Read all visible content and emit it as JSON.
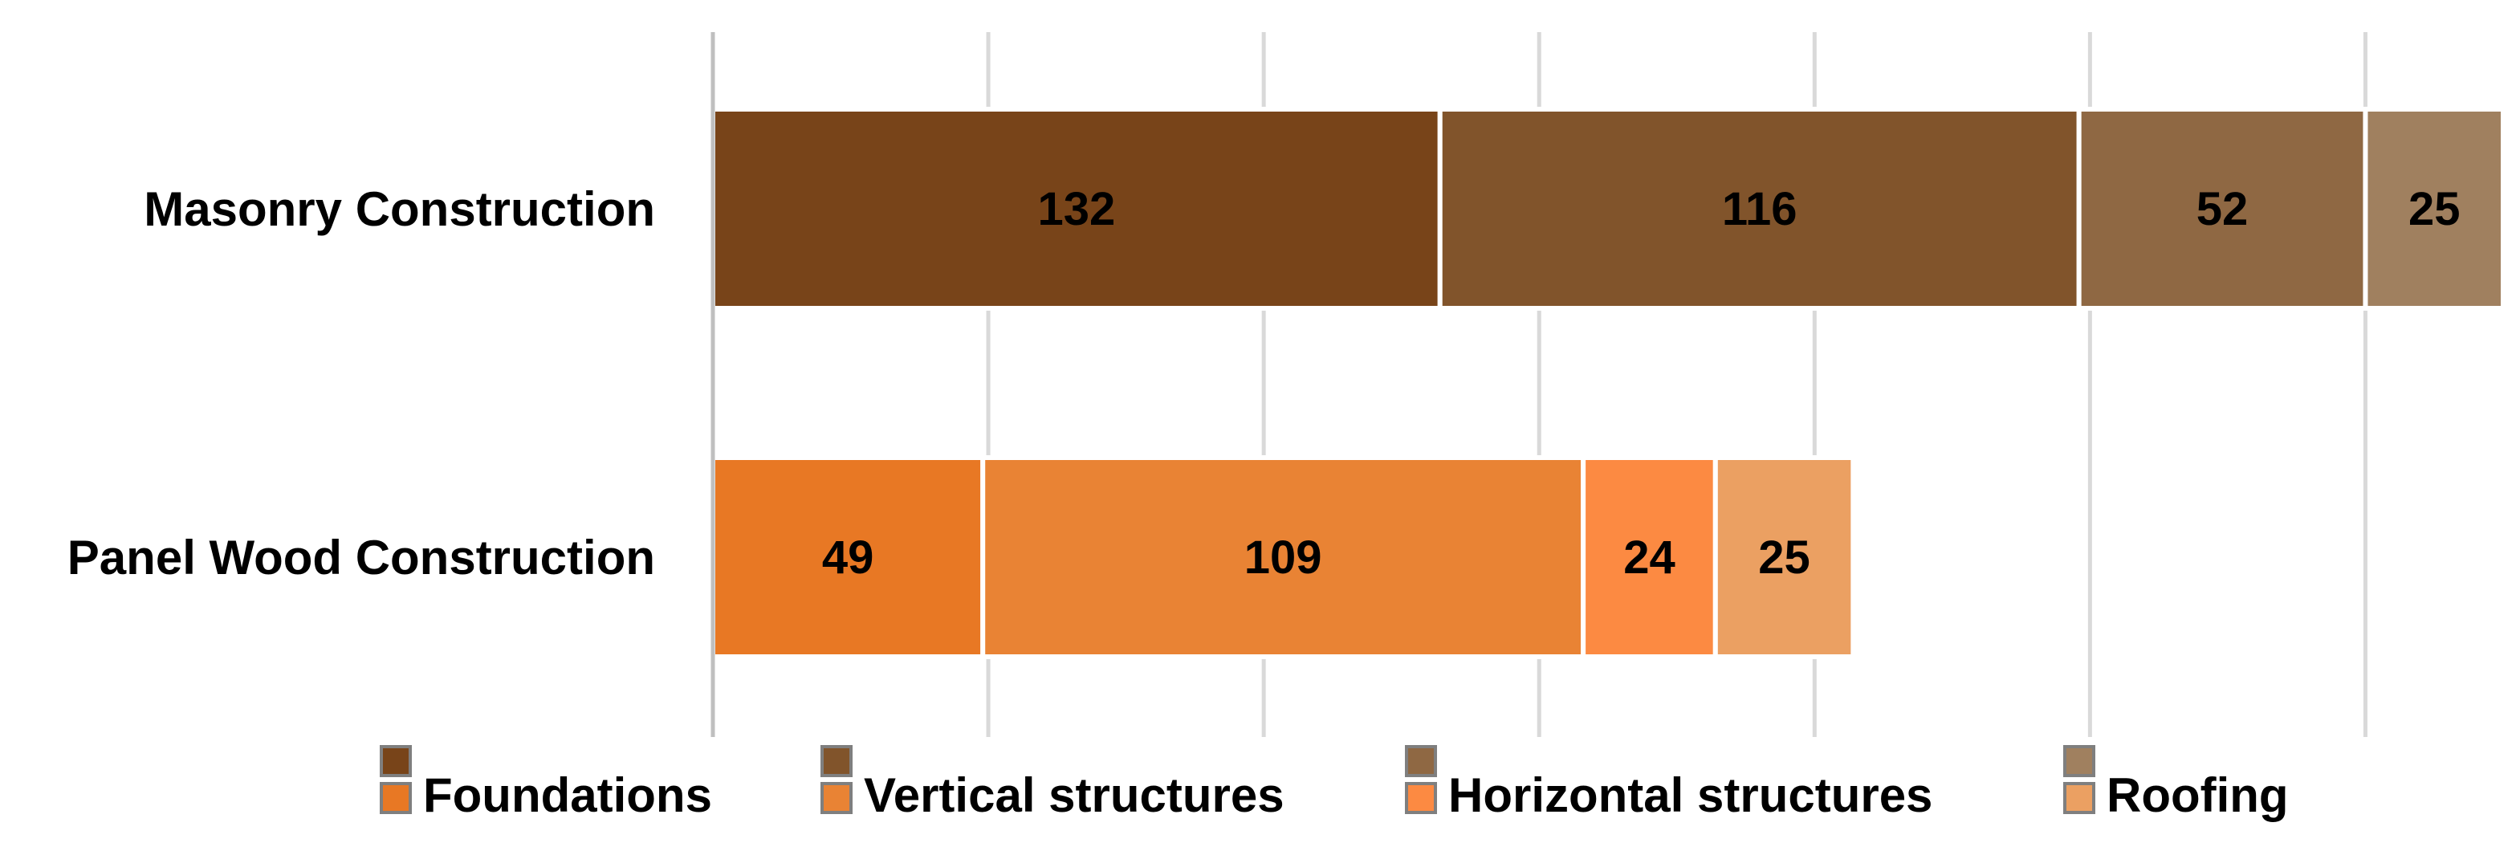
{
  "chart_data": {
    "type": "bar",
    "orientation": "horizontal",
    "stacked": true,
    "categories": [
      "Masonry Construction",
      "Panel Wood Construction"
    ],
    "series": [
      {
        "name": "Foundations",
        "values": [
          132,
          49
        ],
        "colors": [
          "#784419",
          "#e87824"
        ]
      },
      {
        "name": "Vertical structures",
        "values": [
          116,
          109
        ],
        "colors": [
          "#81542b",
          "#e98334"
        ]
      },
      {
        "name": "Horizontal structures",
        "values": [
          52,
          24
        ],
        "colors": [
          "#8f6843",
          "#fc8a42"
        ]
      },
      {
        "name": "Roofing",
        "values": [
          25,
          25
        ],
        "colors": [
          "#a0805f",
          "#eba062"
        ]
      }
    ],
    "xlim": [
      0,
      325
    ],
    "grid": true,
    "legend_position": "bottom"
  }
}
